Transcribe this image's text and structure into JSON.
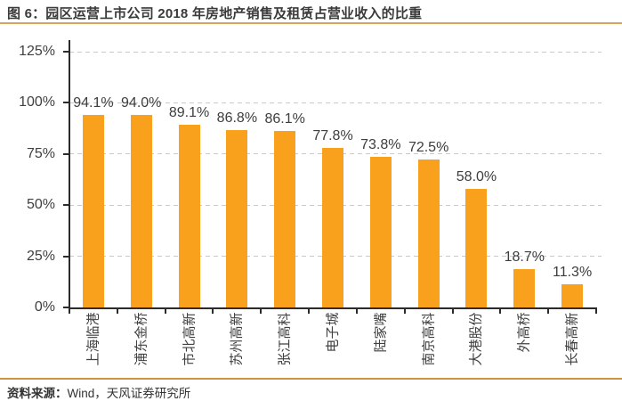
{
  "header": {
    "title": "图 6：园区运营上市公司 2018 年房地产销售及租赁占营业收入的比重"
  },
  "chart_data": {
    "type": "bar",
    "title": "园区运营上市公司 2018 年房地产销售及租赁占营业收入的比重",
    "categories": [
      "上海临港",
      "浦东金桥",
      "市北高新",
      "苏州高新",
      "张江高科",
      "电子城",
      "陆家嘴",
      "南京高科",
      "大港股份",
      "外高桥",
      "长春高新"
    ],
    "values": [
      94.1,
      94.0,
      89.1,
      86.8,
      86.1,
      77.8,
      73.8,
      72.5,
      58.0,
      18.7,
      11.3
    ],
    "value_labels": [
      "94.1%",
      "94.0%",
      "89.1%",
      "86.8%",
      "86.1%",
      "77.8%",
      "73.8%",
      "72.5%",
      "58.0%",
      "18.7%",
      "11.3%"
    ],
    "xlabel": "",
    "ylabel": "",
    "ylim": [
      0,
      125
    ],
    "yticks": [
      0,
      25,
      50,
      75,
      100,
      125
    ],
    "ytick_labels": [
      "0%",
      "25%",
      "50%",
      "75%",
      "100%",
      "125%"
    ],
    "grid": "horizontal-dashed",
    "legend": "none",
    "bar_color": "#F9A11C"
  },
  "footer": {
    "source_label": "资料来源：",
    "source_text": "Wind，天风证券研究所"
  },
  "colors": {
    "bar": "#F9A11C",
    "top_rule": "#D8A35A",
    "bottom_rule": "#CE953F",
    "grid": "#C9C9C9",
    "axis": "#2B2B2B",
    "text": "#3D3D3D"
  }
}
